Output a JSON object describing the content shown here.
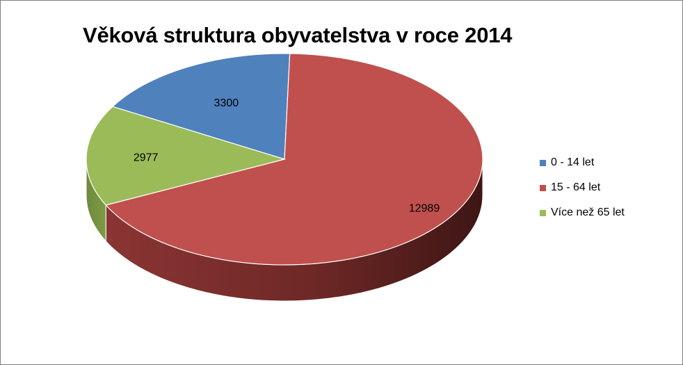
{
  "chart_data": {
    "type": "pie",
    "title": "Věková struktura obyvatelstva v roce 2014",
    "categories": [
      "0 - 14 let",
      "15 - 64 let",
      "Více než 65 let"
    ],
    "values": [
      3300,
      12989,
      2977
    ],
    "data_labels": [
      "3300",
      "12989",
      "2977"
    ],
    "colors": [
      "#4f81bd",
      "#c0504d",
      "#9bbb59"
    ],
    "legend_position": "right",
    "style": "3d-pie"
  }
}
